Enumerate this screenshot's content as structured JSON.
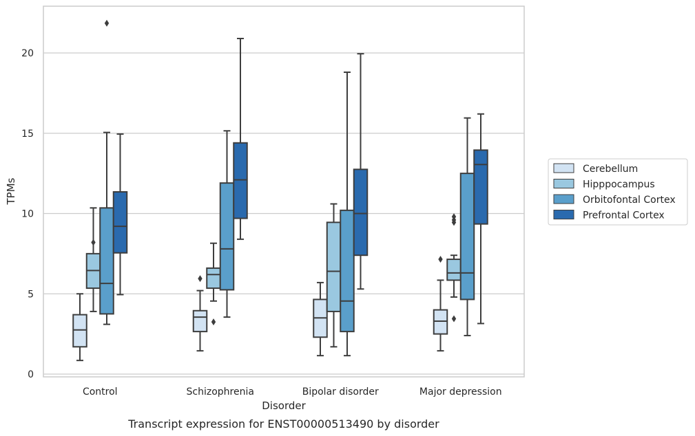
{
  "chart_data": {
    "type": "box",
    "caption": "Transcript expression for ENST00000513490 by disorder",
    "xlabel": "Disorder",
    "ylabel": "TPMs",
    "ylim": [
      -0.2,
      23.0
    ],
    "yticks": [
      0,
      5,
      10,
      15,
      20
    ],
    "grid": "horizontal",
    "legend_position": "right",
    "categories": [
      "Control",
      "Schizophrenia",
      "Bipolar disorder",
      "Major depression"
    ],
    "series": [
      {
        "name": "Cerebellum",
        "color": "#d2e3f3",
        "boxes": [
          {
            "whisker_low": 0.85,
            "q1": 1.7,
            "median": 2.75,
            "q3": 3.7,
            "whisker_high": 5.0,
            "outliers": []
          },
          {
            "whisker_low": 1.45,
            "q1": 2.65,
            "median": 3.55,
            "q3": 3.95,
            "whisker_high": 5.2,
            "outliers": [
              5.95
            ]
          },
          {
            "whisker_low": 1.15,
            "q1": 2.3,
            "median": 3.5,
            "q3": 4.65,
            "whisker_high": 5.7,
            "outliers": []
          },
          {
            "whisker_low": 1.45,
            "q1": 2.5,
            "median": 3.3,
            "q3": 4.0,
            "whisker_high": 5.85,
            "outliers": [
              7.15
            ]
          }
        ]
      },
      {
        "name": "Hipppocampus",
        "color": "#9ac8e0",
        "boxes": [
          {
            "whisker_low": 3.9,
            "q1": 5.35,
            "median": 6.45,
            "q3": 7.5,
            "whisker_high": 10.35,
            "outliers": [
              8.2
            ]
          },
          {
            "whisker_low": 4.55,
            "q1": 5.35,
            "median": 6.2,
            "q3": 6.6,
            "whisker_high": 8.15,
            "outliers": [
              3.25
            ]
          },
          {
            "whisker_low": 1.7,
            "q1": 3.9,
            "median": 6.4,
            "q3": 9.45,
            "whisker_high": 10.6,
            "outliers": []
          },
          {
            "whisker_low": 4.8,
            "q1": 5.85,
            "median": 6.3,
            "q3": 7.15,
            "whisker_high": 7.4,
            "outliers": [
              3.45,
              9.45,
              9.6,
              9.8
            ]
          }
        ]
      },
      {
        "name": "Orbitofontal Cortex",
        "color": "#5a9fcb",
        "boxes": [
          {
            "whisker_low": 3.1,
            "q1": 3.75,
            "median": 5.65,
            "q3": 10.35,
            "whisker_high": 15.05,
            "outliers": [
              21.85
            ]
          },
          {
            "whisker_low": 3.55,
            "q1": 5.25,
            "median": 7.8,
            "q3": 11.9,
            "whisker_high": 15.15,
            "outliers": []
          },
          {
            "whisker_low": 1.15,
            "q1": 2.65,
            "median": 4.55,
            "q3": 10.2,
            "whisker_high": 18.8,
            "outliers": []
          },
          {
            "whisker_low": 2.4,
            "q1": 4.65,
            "median": 6.3,
            "q3": 12.5,
            "whisker_high": 15.95,
            "outliers": []
          }
        ]
      },
      {
        "name": "Prefrontal Cortex",
        "color": "#2a6aae",
        "boxes": [
          {
            "whisker_low": 4.95,
            "q1": 7.55,
            "median": 9.2,
            "q3": 11.35,
            "whisker_high": 14.95,
            "outliers": []
          },
          {
            "whisker_low": 8.4,
            "q1": 9.7,
            "median": 12.1,
            "q3": 14.4,
            "whisker_high": 20.9,
            "outliers": []
          },
          {
            "whisker_low": 5.3,
            "q1": 7.4,
            "median": 10.0,
            "q3": 12.75,
            "whisker_high": 19.95,
            "outliers": []
          },
          {
            "whisker_low": 3.15,
            "q1": 9.35,
            "median": 13.05,
            "q3": 13.95,
            "whisker_high": 16.2,
            "outliers": []
          }
        ]
      }
    ]
  }
}
